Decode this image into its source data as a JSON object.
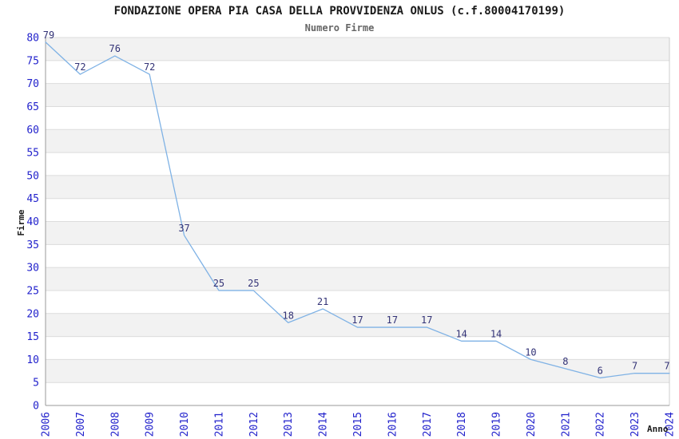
{
  "chart_data": {
    "type": "line",
    "title": "FONDAZIONE OPERA PIA CASA DELLA PROVVIDENZA ONLUS (c.f.80004170199)",
    "subtitle": "Numero Firme",
    "xlabel": "Anno",
    "ylabel": "Firme",
    "categories": [
      "2006",
      "2007",
      "2008",
      "2009",
      "2010",
      "2011",
      "2012",
      "2013",
      "2014",
      "2015",
      "2016",
      "2017",
      "2018",
      "2019",
      "2020",
      "2021",
      "2022",
      "2023",
      "2024"
    ],
    "values": [
      79,
      72,
      76,
      72,
      37,
      25,
      25,
      18,
      21,
      17,
      17,
      17,
      14,
      14,
      10,
      8,
      6,
      7,
      7
    ],
    "ylim": [
      0,
      80
    ],
    "ytick_step": 5,
    "grid": "horizontal",
    "legend": "none",
    "band_pattern": "alternating",
    "colors": {
      "line": "#7fb2e5",
      "value_label": "#333377",
      "tick_label": "#2222cc",
      "axis_title": "#1a1a1a",
      "title": "#1a1a1a",
      "subtitle": "#666666",
      "band_gray": "#f2f2f2",
      "band_white": "#ffffff",
      "gridline": "#dcdcdc",
      "axis_line": "#999999",
      "right_border": "#cccccc",
      "background": "#ffffff"
    }
  }
}
